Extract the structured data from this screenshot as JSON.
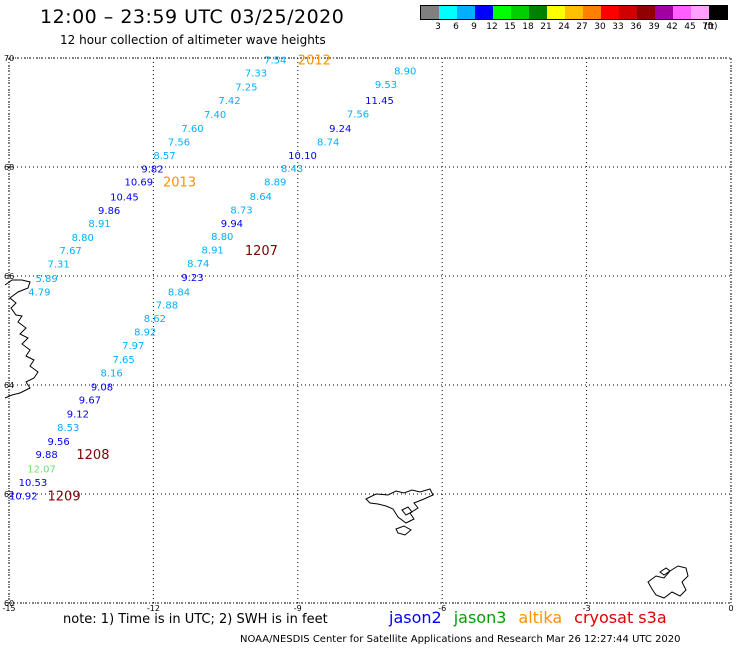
{
  "header": {
    "title": "12:00 – 23:59 UTC 03/25/2020",
    "subtitle": "12 hour collection of altimeter wave heights"
  },
  "legend": {
    "colors": [
      "#808080",
      "#00ffff",
      "#00b0ff",
      "#0000ff",
      "#00ff00",
      "#00d000",
      "#008000",
      "#ffff00",
      "#ffc000",
      "#ff8000",
      "#ff0000",
      "#d00000",
      "#900000",
      "#a000a0",
      "#ff60ff",
      "#ffa0ff",
      "#000000"
    ],
    "labels": [
      "3",
      "6",
      "9",
      "12",
      "15",
      "18",
      "21",
      "24",
      "27",
      "30",
      "33",
      "36",
      "39",
      "42",
      "45",
      "70"
    ],
    "unit": "(ft)"
  },
  "axes": {
    "lon_ticks": [
      {
        "lon": -15,
        "label": "-15"
      },
      {
        "lon": -12,
        "label": "-12"
      },
      {
        "lon": -9,
        "label": "-9"
      },
      {
        "lon": -6,
        "label": "-6"
      },
      {
        "lon": -3,
        "label": "-3"
      },
      {
        "lon": 0,
        "label": "0"
      }
    ],
    "lat_ticks": [
      {
        "lat": 70,
        "label": "70"
      },
      {
        "lat": 68,
        "label": "68"
      },
      {
        "lat": 66,
        "label": "66"
      },
      {
        "lat": 64,
        "label": "64"
      },
      {
        "lat": 62,
        "label": "62"
      },
      {
        "lat": 60,
        "label": "60"
      }
    ]
  },
  "observations": [
    {
      "v": "7.54",
      "lon": -9.7,
      "lat": 69.97,
      "c": "#00b0ff"
    },
    {
      "v": "7.33",
      "lon": -10.1,
      "lat": 69.73,
      "c": "#00b0ff"
    },
    {
      "v": "7.25",
      "lon": -10.3,
      "lat": 69.48,
      "c": "#00b0ff"
    },
    {
      "v": "7.42",
      "lon": -10.65,
      "lat": 69.23,
      "c": "#00b0ff"
    },
    {
      "v": "7.40",
      "lon": -10.95,
      "lat": 68.97,
      "c": "#00b0ff"
    },
    {
      "v": "7.60",
      "lon": -11.42,
      "lat": 68.72,
      "c": "#00b0ff"
    },
    {
      "v": "7.56",
      "lon": -11.7,
      "lat": 68.47,
      "c": "#00b0ff"
    },
    {
      "v": "8.57",
      "lon": -12.0,
      "lat": 68.22,
      "c": "#00b0ff"
    },
    {
      "v": "9.82",
      "lon": -12.25,
      "lat": 67.97,
      "c": "#0000ff"
    },
    {
      "v": "10.69",
      "lon": -12.6,
      "lat": 67.73,
      "c": "#0000ff"
    },
    {
      "v": "10.45",
      "lon": -12.9,
      "lat": 67.46,
      "c": "#0000ff"
    },
    {
      "v": "9.86",
      "lon": -13.15,
      "lat": 67.21,
      "c": "#0000ff"
    },
    {
      "v": "8.91",
      "lon": -13.35,
      "lat": 66.97,
      "c": "#00b0ff"
    },
    {
      "v": "8.80",
      "lon": -13.7,
      "lat": 66.72,
      "c": "#00b0ff"
    },
    {
      "v": "7.67",
      "lon": -13.95,
      "lat": 66.48,
      "c": "#00b0ff"
    },
    {
      "v": "7.31",
      "lon": -14.2,
      "lat": 66.23,
      "c": "#00b0ff"
    },
    {
      "v": "5.89",
      "lon": -14.45,
      "lat": 65.96,
      "c": "#00b0ff"
    },
    {
      "v": "4.79",
      "lon": -14.6,
      "lat": 65.72,
      "c": "#00b0ff"
    },
    {
      "v": "8.90",
      "lon": -7.0,
      "lat": 69.77,
      "c": "#00b0ff"
    },
    {
      "v": "9.53",
      "lon": -7.4,
      "lat": 69.52,
      "c": "#00b0ff"
    },
    {
      "v": "11.45",
      "lon": -7.6,
      "lat": 69.23,
      "c": "#0000ff"
    },
    {
      "v": "7.56",
      "lon": -7.98,
      "lat": 68.98,
      "c": "#00b0ff"
    },
    {
      "v": "9.24",
      "lon": -8.35,
      "lat": 68.72,
      "c": "#0000ff"
    },
    {
      "v": "8.74",
      "lon": -8.6,
      "lat": 68.47,
      "c": "#00b0ff"
    },
    {
      "v": "10.10",
      "lon": -9.2,
      "lat": 68.22,
      "c": "#0000ff"
    },
    {
      "v": "8.43",
      "lon": -9.35,
      "lat": 67.98,
      "c": "#00b0ff"
    },
    {
      "v": "8.89",
      "lon": -9.7,
      "lat": 67.73,
      "c": "#00b0ff"
    },
    {
      "v": "8.64",
      "lon": -10.0,
      "lat": 67.47,
      "c": "#00b0ff"
    },
    {
      "v": "8.73",
      "lon": -10.4,
      "lat": 67.22,
      "c": "#00b0ff"
    },
    {
      "v": "9.94",
      "lon": -10.6,
      "lat": 66.97,
      "c": "#0000ff"
    },
    {
      "v": "8.80",
      "lon": -10.8,
      "lat": 66.73,
      "c": "#00b0ff"
    },
    {
      "v": "8.91",
      "lon": -11.0,
      "lat": 66.49,
      "c": "#00b0ff"
    },
    {
      "v": "8.74",
      "lon": -11.3,
      "lat": 66.24,
      "c": "#00b0ff"
    },
    {
      "v": "9.23",
      "lon": -11.42,
      "lat": 65.98,
      "c": "#0000ff"
    },
    {
      "v": "8.84",
      "lon": -11.7,
      "lat": 65.72,
      "c": "#00b0ff"
    },
    {
      "v": "7.88",
      "lon": -11.95,
      "lat": 65.48,
      "c": "#00b0ff"
    },
    {
      "v": "8.62",
      "lon": -12.2,
      "lat": 65.23,
      "c": "#00b0ff"
    },
    {
      "v": "8.92",
      "lon": -12.4,
      "lat": 64.98,
      "c": "#00b0ff"
    },
    {
      "v": "7.97",
      "lon": -12.65,
      "lat": 64.73,
      "c": "#00b0ff"
    },
    {
      "v": "7.65",
      "lon": -12.85,
      "lat": 64.48,
      "c": "#00b0ff"
    },
    {
      "v": "8.16",
      "lon": -13.1,
      "lat": 64.23,
      "c": "#00b0ff"
    },
    {
      "v": "9.08",
      "lon": -13.3,
      "lat": 63.97,
      "c": "#0000ff"
    },
    {
      "v": "9.67",
      "lon": -13.55,
      "lat": 63.73,
      "c": "#0000ff"
    },
    {
      "v": "9.12",
      "lon": -13.8,
      "lat": 63.48,
      "c": "#0000ff"
    },
    {
      "v": "8.53",
      "lon": -14.0,
      "lat": 63.23,
      "c": "#00b0ff"
    },
    {
      "v": "9.56",
      "lon": -14.2,
      "lat": 62.97,
      "c": "#0000ff"
    },
    {
      "v": "9.88",
      "lon": -14.45,
      "lat": 62.73,
      "c": "#0000ff"
    },
    {
      "v": "12.07",
      "lon": -14.62,
      "lat": 62.47,
      "c": "#70e070"
    },
    {
      "v": "10.53",
      "lon": -14.8,
      "lat": 62.22,
      "c": "#0000ff"
    },
    {
      "v": "10.92",
      "lon": -15.0,
      "lat": 61.97,
      "c": "#0000ff"
    }
  ],
  "pass_times": [
    {
      "t": "2012",
      "lon": -9.0,
      "lat": 69.97,
      "c": "#ff9000"
    },
    {
      "t": "2013",
      "lon": -11.8,
      "lat": 67.73,
      "c": "#ff9000"
    },
    {
      "t": "1207",
      "lon": -10.1,
      "lat": 66.48,
      "c": "#800000"
    },
    {
      "t": "1208",
      "lon": -13.6,
      "lat": 62.73,
      "c": "#800000"
    },
    {
      "t": "1209",
      "lon": -14.2,
      "lat": 61.97,
      "c": "#800000"
    }
  ],
  "footer": {
    "note": "note:  1) Time is in UTC;  2) SWH is in feet",
    "satellites": [
      {
        "name": "jason2",
        "color": "#0000ff"
      },
      {
        "name": "jason3",
        "color": "#00a000"
      },
      {
        "name": "altika",
        "color": "#ff9000"
      },
      {
        "name": "cryosat s3a",
        "color": "#e00000"
      }
    ],
    "credit": "NOAA/NESDIS Center for Satellite Applications and Research    Mar 26 12:27:44 UTC 2020"
  }
}
